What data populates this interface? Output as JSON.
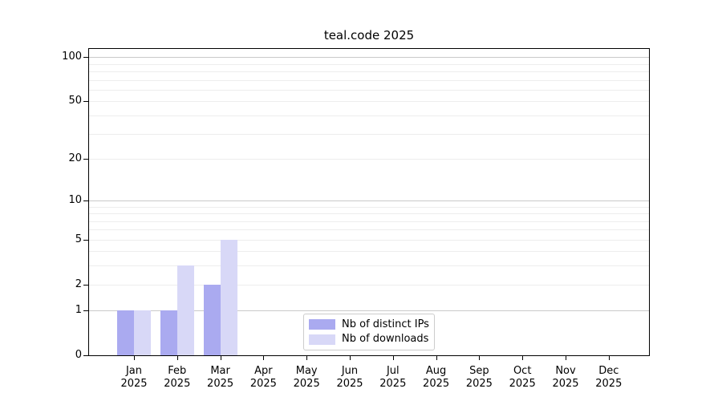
{
  "chart_data": {
    "type": "bar",
    "title": "teal.code 2025",
    "year": "2025",
    "categories": [
      "Jan",
      "Feb",
      "Mar",
      "Apr",
      "May",
      "Jun",
      "Jul",
      "Aug",
      "Sep",
      "Oct",
      "Nov",
      "Dec"
    ],
    "series": [
      {
        "name": "Nb of distinct IPs",
        "color": "#aaaaf0",
        "values": [
          1,
          1,
          2,
          0,
          0,
          0,
          0,
          0,
          0,
          0,
          0,
          0
        ]
      },
      {
        "name": "Nb of downloads",
        "color": "#d8d8f7",
        "values": [
          1,
          3,
          5,
          0,
          0,
          0,
          0,
          0,
          0,
          0,
          0,
          0
        ]
      }
    ],
    "xlabel": "",
    "ylabel": "",
    "yscale": "log1p",
    "ylim": [
      0,
      114
    ],
    "yticks": [
      0,
      1,
      2,
      5,
      10,
      20,
      50,
      100
    ],
    "grid": {
      "on": true,
      "major_values": [
        1,
        10,
        100
      ],
      "minor_values": [
        2,
        3,
        4,
        5,
        6,
        7,
        8,
        9,
        20,
        30,
        40,
        50,
        60,
        70,
        80,
        90
      ]
    },
    "legend_position": "lower-center"
  },
  "colors": {
    "spine": "#000000",
    "grid_major": "#c9c9c9",
    "grid_minor": "#ededed",
    "legend_border": "#cccccc",
    "background": "#ffffff"
  }
}
